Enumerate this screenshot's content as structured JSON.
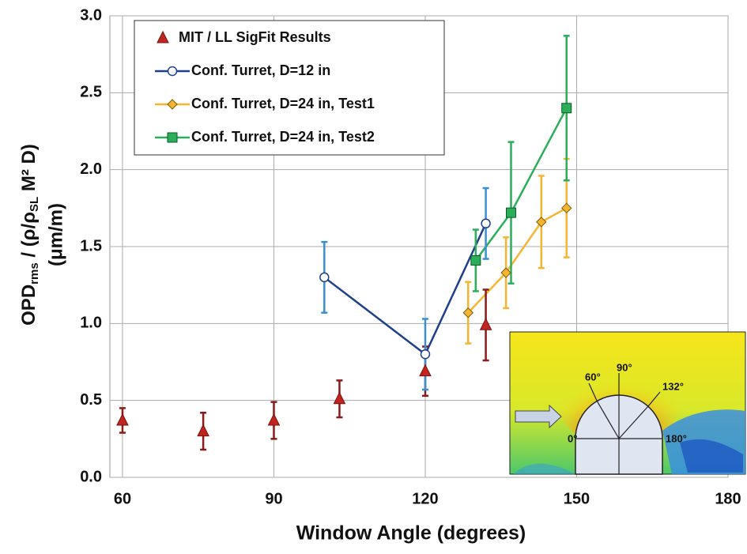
{
  "chart_data": {
    "type": "errorbar",
    "xlabel": "Window Angle (degrees)",
    "ylabel": {
      "parts": [
        "OPD",
        "rms",
        " / (ρ/ρ",
        "SL",
        " M² D)"
      ],
      "units": "(μm/m)"
    },
    "xlim": [
      57.5,
      180
    ],
    "xticks": [
      60,
      90,
      120,
      150,
      180
    ],
    "ylim": [
      0,
      3
    ],
    "yticks": [
      {
        "value": 0,
        "label": "0.0"
      },
      0.5,
      {
        "value": 1,
        "label": "1.0"
      },
      1.5,
      {
        "value": 2,
        "label": "2.0"
      },
      2.5,
      {
        "value": 3,
        "label": "3.0"
      }
    ],
    "grid": true,
    "legend": "upper left",
    "series": [
      {
        "name": "MIT / LL SigFit Results",
        "color": "#c0251e",
        "marker": "triangle",
        "error_color": "#8b1a1a",
        "line": false,
        "x": [
          60,
          76,
          90,
          103,
          120,
          132
        ],
        "values": [
          0.37,
          0.3,
          0.37,
          0.51,
          0.69,
          0.99
        ],
        "errors": [
          0.08,
          0.12,
          0.12,
          0.12,
          0.16,
          0.23
        ]
      },
      {
        "name": "Conf. Turret, D=12 in",
        "color": "#1f3f8c",
        "marker": "circle-open",
        "error_color": "#3a8fd0",
        "line": true,
        "x": [
          100,
          120,
          132
        ],
        "values": [
          1.3,
          0.8,
          1.65
        ],
        "errors": [
          0.23,
          0.23,
          0.23
        ]
      },
      {
        "name": "Conf. Turret, D=24 in, Test1",
        "color": "#f5b533",
        "marker": "diamond",
        "error_color": "#f5b533",
        "line": true,
        "x": [
          128.5,
          136,
          143,
          148
        ],
        "values": [
          1.07,
          1.33,
          1.66,
          1.75
        ],
        "errors": [
          0.2,
          0.23,
          0.3,
          0.32
        ]
      },
      {
        "name": "Conf. Turret, D=24 in, Test2",
        "color": "#2aae5a",
        "marker": "square",
        "error_color": "#2aae5a",
        "line": true,
        "x": [
          130,
          137,
          148
        ],
        "values": [
          1.41,
          1.72,
          2.4
        ],
        "errors": [
          0.2,
          0.46,
          0.47
        ]
      }
    ],
    "inset_labels": [
      "60°",
      "90°",
      "132°",
      "0°",
      "180°"
    ]
  }
}
